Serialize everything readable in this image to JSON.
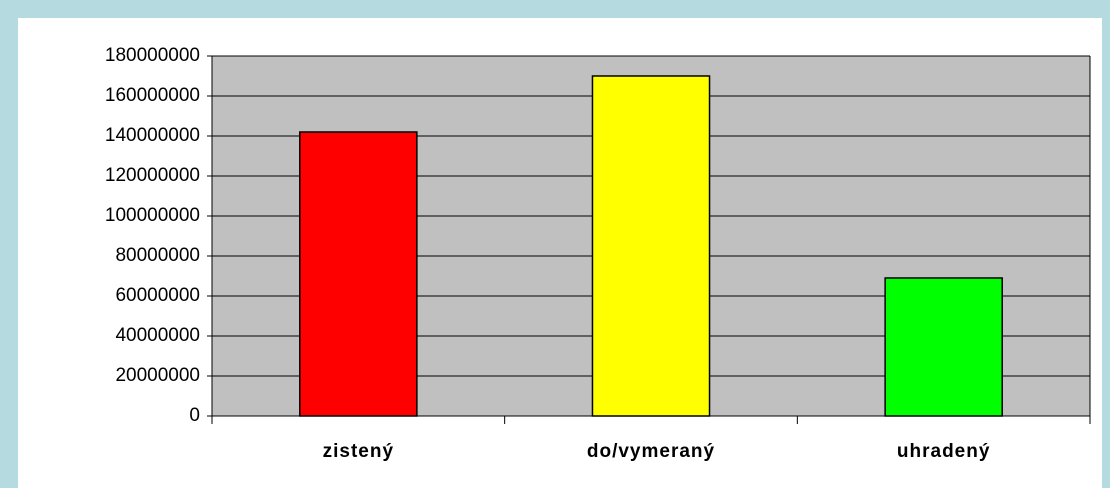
{
  "chart_data": {
    "type": "bar",
    "categories": [
      "zistený",
      "do/vymeraný",
      "uhradený"
    ],
    "values": [
      142000000,
      170000000,
      69000000
    ],
    "colors": [
      "#ff0000",
      "#ffff00",
      "#00ff00"
    ],
    "ylim": [
      0,
      180000000
    ],
    "yticks": [
      0,
      20000000,
      40000000,
      60000000,
      80000000,
      100000000,
      120000000,
      140000000,
      160000000,
      180000000
    ],
    "grid": true
  }
}
